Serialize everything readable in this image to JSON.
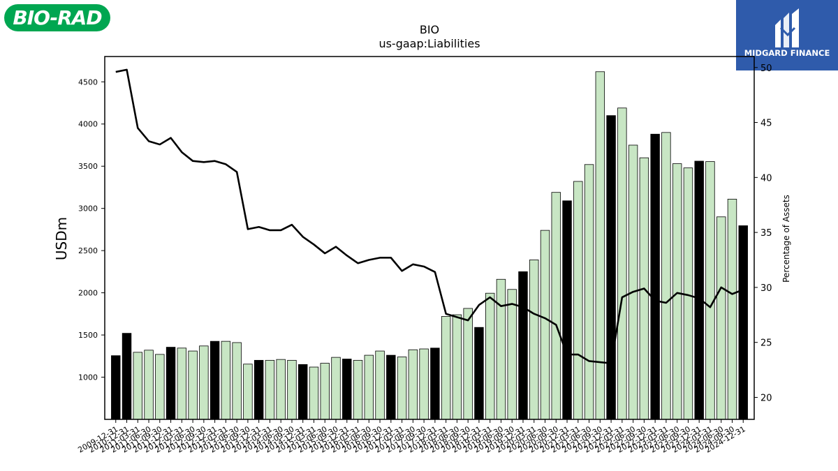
{
  "branding": {
    "left_logo": "BIO-RAD",
    "left_color": "#00a651",
    "right_logo": "MIDGARD FINANCE",
    "right_color": "#2f5bab"
  },
  "chart_data": {
    "type": "bar",
    "title": "BIO",
    "subtitle": "us-gaap:Liabilities",
    "ylabel": "USDm",
    "y2label": "Percentage of Assets",
    "ylim": [
      500,
      4800
    ],
    "y2lim": [
      18,
      51
    ],
    "yticks": [
      1000,
      1500,
      2000,
      2500,
      3000,
      3500,
      4000,
      4500
    ],
    "y2ticks": [
      20,
      25,
      30,
      35,
      40,
      45,
      50
    ],
    "grid": false,
    "bar_color": "#c8e6c4",
    "highlight_color": "#000000",
    "line_color": "#000000",
    "categories": [
      "2009-12-31",
      "2010-12-31",
      "2011-03-31",
      "2011-06-30",
      "2011-09-30",
      "2011-12-31",
      "2012-03-31",
      "2012-06-30",
      "2012-09-30",
      "2012-12-31",
      "2013-03-31",
      "2013-06-30",
      "2013-09-30",
      "2013-12-31",
      "2014-03-31",
      "2014-06-30",
      "2014-09-30",
      "2014-12-31",
      "2015-03-31",
      "2015-06-30",
      "2015-09-30",
      "2015-12-31",
      "2016-03-31",
      "2016-06-30",
      "2016-09-30",
      "2016-12-31",
      "2017-03-31",
      "2017-06-30",
      "2017-09-30",
      "2017-12-31",
      "2018-03-31",
      "2018-06-30",
      "2018-09-30",
      "2018-12-31",
      "2019-03-31",
      "2019-06-30",
      "2019-09-30",
      "2019-12-31",
      "2020-03-31",
      "2020-06-30",
      "2020-09-30",
      "2020-12-31",
      "2021-03-31",
      "2021-06-30",
      "2021-09-30",
      "2021-12-31",
      "2022-03-31",
      "2022-06-30",
      "2022-09-30",
      "2022-12-31",
      "2023-03-31",
      "2023-06-30",
      "2023-09-30",
      "2023-12-31",
      "2024-03-31",
      "2024-06-30",
      "2024-09-30",
      "2024-12-31"
    ],
    "series": [
      {
        "type": "bar",
        "values": [
          1255,
          1520,
          1295,
          1320,
          1270,
          1355,
          1345,
          1310,
          1370,
          1425,
          1425,
          1410,
          1155,
          1200,
          1200,
          1210,
          1200,
          1150,
          1120,
          1165,
          1235,
          1215,
          1200,
          1260,
          1310,
          1260,
          1240,
          1325,
          1335,
          1345,
          1720,
          1740,
          1815,
          1590,
          1995,
          2160,
          2040,
          2250,
          2390,
          2740,
          3190,
          3090,
          3320,
          3520,
          4620,
          4100,
          4190,
          3750,
          3600,
          3880,
          3900,
          3530,
          3480,
          3560,
          3555,
          2900,
          3110,
          2795
        ],
        "highlight": [
          true,
          true,
          false,
          false,
          false,
          true,
          false,
          false,
          false,
          true,
          false,
          false,
          false,
          true,
          false,
          false,
          false,
          true,
          false,
          false,
          false,
          true,
          false,
          false,
          false,
          true,
          false,
          false,
          false,
          true,
          false,
          false,
          false,
          true,
          false,
          false,
          false,
          true,
          false,
          false,
          false,
          true,
          false,
          false,
          false,
          true,
          false,
          false,
          false,
          true,
          false,
          false,
          false,
          true,
          false,
          false,
          false,
          true
        ]
      },
      {
        "type": "line",
        "axis": "right",
        "values": [
          49.6,
          49.8,
          44.5,
          43.3,
          43.0,
          43.6,
          42.3,
          41.5,
          41.4,
          41.5,
          41.2,
          40.5,
          35.3,
          35.5,
          35.2,
          35.2,
          35.7,
          34.6,
          33.9,
          33.1,
          33.7,
          32.9,
          32.2,
          32.5,
          32.7,
          32.7,
          31.5,
          32.1,
          31.9,
          31.4,
          27.6,
          27.3,
          27.0,
          28.4,
          29.1,
          28.3,
          28.5,
          28.2,
          27.6,
          27.2,
          26.6,
          23.9,
          23.9,
          23.3,
          23.2,
          23.1,
          29.1,
          29.6,
          29.9,
          28.8,
          28.6,
          29.5,
          29.3,
          29.0,
          28.2,
          30.0,
          29.4,
          29.8
        ]
      }
    ]
  }
}
